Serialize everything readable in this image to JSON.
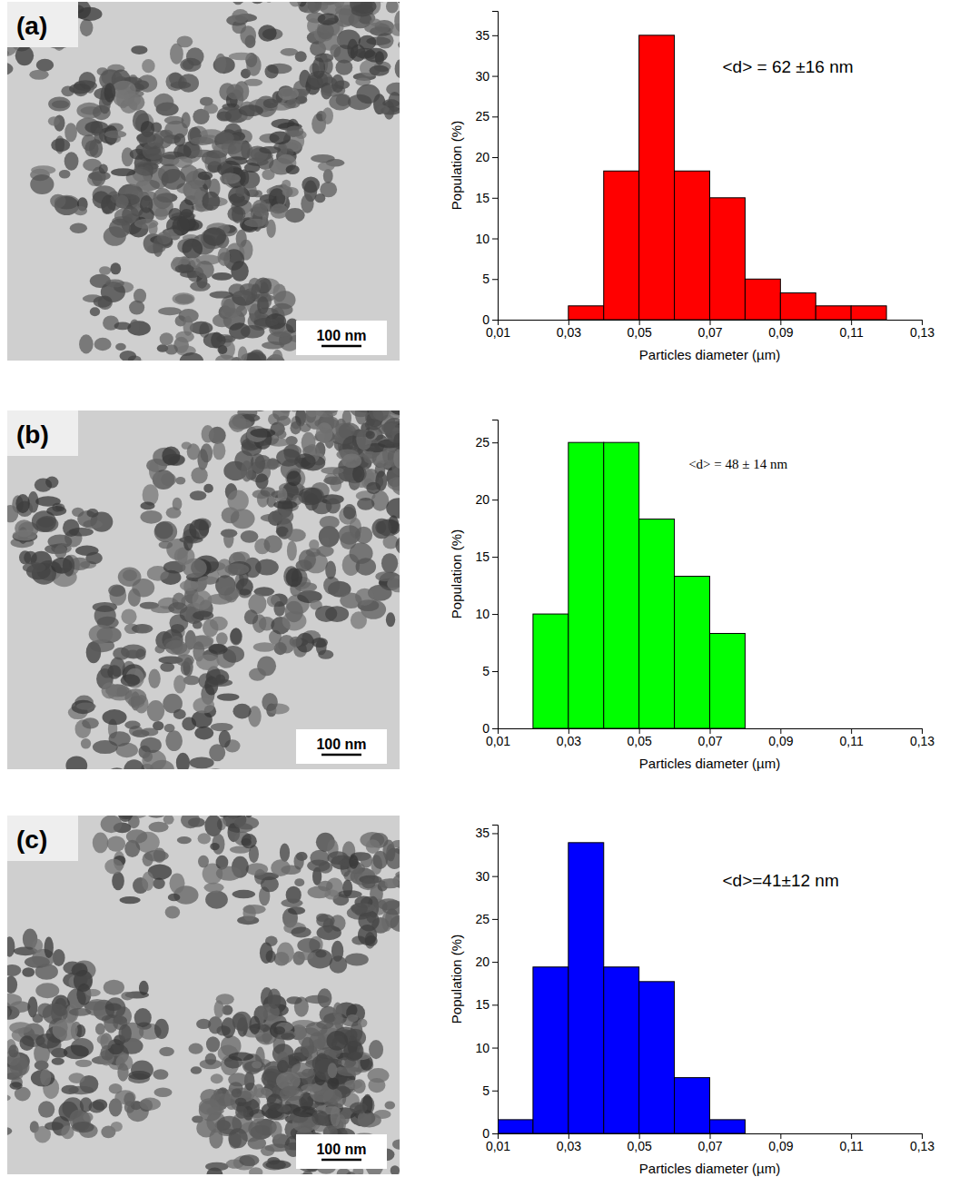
{
  "chart_data": [
    {
      "type": "histogram",
      "x_label": "Particles diameter (µm)",
      "y_label": "Population (%)",
      "annotation": "<d> = 62 ±16 nm",
      "bins": [
        0.03,
        0.04,
        0.05,
        0.06,
        0.07,
        0.08,
        0.09,
        0.1,
        0.11,
        0.12
      ],
      "values": [
        1.7,
        18.3,
        35,
        18.3,
        15,
        5,
        3.3,
        1.7,
        1.7
      ],
      "color": "#ff0000",
      "xlim": [
        0.01,
        0.13
      ],
      "xticks": [
        {
          "value": 0.01,
          "label": "0,01"
        },
        {
          "value": 0.03,
          "label": "0,03"
        },
        {
          "value": 0.05,
          "label": "0,05"
        },
        {
          "value": 0.07,
          "label": "0,07"
        },
        {
          "value": 0.09,
          "label": "0,09"
        },
        {
          "value": 0.11,
          "label": "0,11"
        },
        {
          "value": 0.13,
          "label": "0,13"
        }
      ],
      "ylim": [
        0,
        38
      ],
      "yticks": [
        0,
        5,
        10,
        15,
        20,
        25,
        30,
        35
      ]
    },
    {
      "type": "histogram",
      "x_label": "Particles diameter (µm)",
      "y_label": "Population (%)",
      "annotation": "<d> = 48 ± 14 nm",
      "bins": [
        0.02,
        0.03,
        0.04,
        0.05,
        0.06,
        0.07,
        0.08
      ],
      "values": [
        10,
        25,
        25,
        18.3,
        13.3,
        8.3
      ],
      "color": "#00ff00",
      "xlim": [
        0.01,
        0.13
      ],
      "xticks": [
        {
          "value": 0.01,
          "label": "0,01"
        },
        {
          "value": 0.03,
          "label": "0,03"
        },
        {
          "value": 0.05,
          "label": "0,05"
        },
        {
          "value": 0.07,
          "label": "0,07"
        },
        {
          "value": 0.09,
          "label": "0,09"
        },
        {
          "value": 0.11,
          "label": "0,11"
        },
        {
          "value": 0.13,
          "label": "0,13"
        }
      ],
      "ylim": [
        0,
        27
      ],
      "yticks": [
        0,
        5,
        10,
        15,
        20,
        25
      ]
    },
    {
      "type": "histogram",
      "x_label": "Particles diameter (µm)",
      "y_label": "Population (%)",
      "annotation": "<d>=41±12 nm",
      "bins": [
        0.01,
        0.02,
        0.03,
        0.04,
        0.05,
        0.06,
        0.07,
        0.08
      ],
      "values": [
        1.6,
        19.4,
        33.9,
        19.4,
        17.7,
        6.5,
        1.6
      ],
      "color": "#0000ff",
      "xlim": [
        0.01,
        0.13
      ],
      "xticks": [
        {
          "value": 0.01,
          "label": "0,01"
        },
        {
          "value": 0.03,
          "label": "0,03"
        },
        {
          "value": 0.05,
          "label": "0,05"
        },
        {
          "value": 0.07,
          "label": "0,07"
        },
        {
          "value": 0.09,
          "label": "0,09"
        },
        {
          "value": 0.11,
          "label": "0,11"
        },
        {
          "value": 0.13,
          "label": "0,13"
        }
      ],
      "ylim": [
        0,
        36
      ],
      "yticks": [
        0,
        5,
        10,
        15,
        20,
        25,
        30,
        35
      ]
    }
  ],
  "images": [
    {
      "label": "(a)",
      "scale_bar": "100 nm"
    },
    {
      "label": "(b)",
      "scale_bar": "100 nm"
    },
    {
      "label": "(c)",
      "scale_bar": "100 nm"
    }
  ]
}
